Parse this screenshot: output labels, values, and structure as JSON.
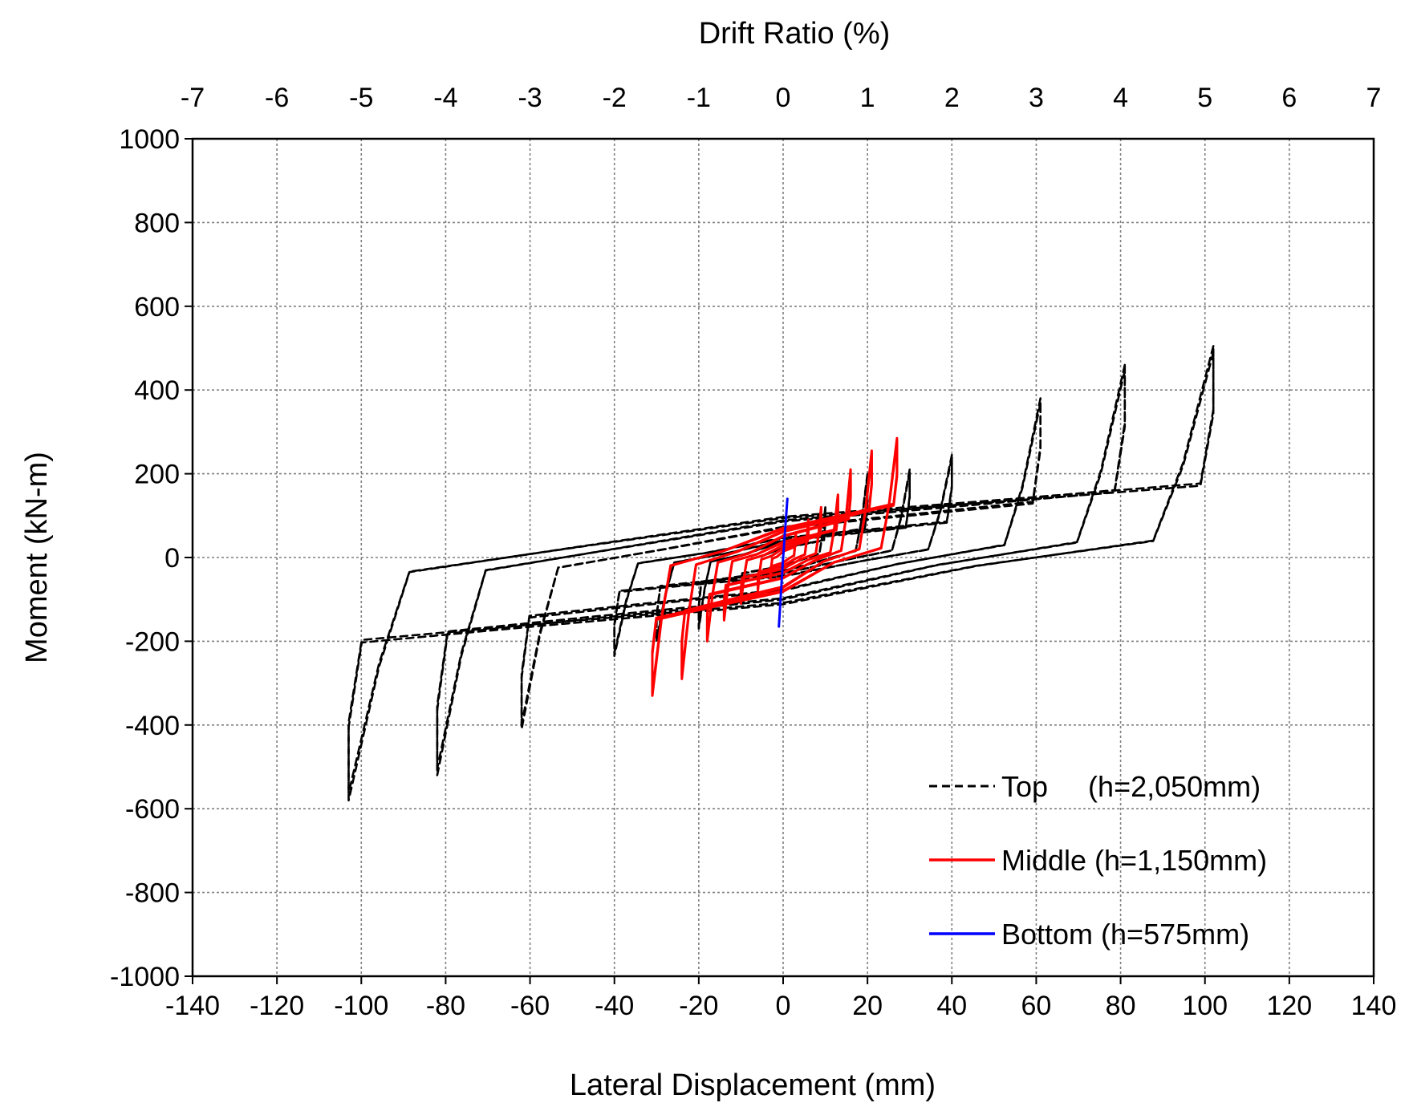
{
  "chart_data": {
    "type": "line",
    "title": "",
    "xlabel": "Lateral Displacement (mm)",
    "ylabel": "Moment (kN-m)",
    "x2label": "Drift Ratio (%)",
    "xlim": [
      -140,
      140
    ],
    "ylim": [
      -1000,
      1000
    ],
    "x2lim": [
      -7,
      7
    ],
    "xticks": [
      -140,
      -120,
      -100,
      -80,
      -60,
      -40,
      -20,
      0,
      20,
      40,
      60,
      80,
      100,
      120,
      140
    ],
    "yticks": [
      -1000,
      -800,
      -600,
      -400,
      -200,
      0,
      200,
      400,
      600,
      800,
      1000
    ],
    "x2ticks": [
      -7,
      -6,
      -5,
      -4,
      -3,
      -2,
      -1,
      0,
      1,
      2,
      3,
      4,
      5,
      6,
      7
    ],
    "grid": true,
    "legend_position": "bottom-right",
    "series": [
      {
        "name": "Top",
        "legend_label": "Top     (h=2,050mm)",
        "color": "#000000",
        "style": "dashed",
        "loops": [
          {
            "amp_pos": 10,
            "m_pos": 120,
            "amp_neg": -10,
            "m_neg": -110
          },
          {
            "amp_pos": 20,
            "m_pos": 200,
            "amp_neg": -20,
            "m_neg": -170
          },
          {
            "amp_pos": 30,
            "m_pos": 210,
            "amp_neg": -30,
            "m_neg": -200
          },
          {
            "amp_pos": 40,
            "m_pos": 245,
            "amp_neg": -40,
            "m_neg": -235
          },
          {
            "amp_pos": 61,
            "m_pos": 380,
            "amp_neg": -62,
            "m_neg": -410
          },
          {
            "amp_pos": 81,
            "m_pos": 460,
            "amp_neg": -82,
            "m_neg": -520
          },
          {
            "amp_pos": 102,
            "m_pos": 505,
            "amp_neg": -103,
            "m_neg": -580
          }
        ]
      },
      {
        "name": "Middle",
        "legend_label": "Middle (h=1,150mm)",
        "color": "#ff0000",
        "style": "solid",
        "loops": [
          {
            "amp_pos": 3,
            "m_pos": 60,
            "amp_neg": -3,
            "m_neg": -50
          },
          {
            "amp_pos": 6,
            "m_pos": 90,
            "amp_neg": -6,
            "m_neg": -80
          },
          {
            "amp_pos": 9,
            "m_pos": 120,
            "amp_neg": -10,
            "m_neg": -110
          },
          {
            "amp_pos": 13,
            "m_pos": 150,
            "amp_neg": -14,
            "m_neg": -150
          },
          {
            "amp_pos": 16,
            "m_pos": 210,
            "amp_neg": -18,
            "m_neg": -200
          },
          {
            "amp_pos": 21,
            "m_pos": 255,
            "amp_neg": -24,
            "m_neg": -290
          },
          {
            "amp_pos": 27,
            "m_pos": 285,
            "amp_neg": -31,
            "m_neg": -330
          }
        ]
      },
      {
        "name": "Bottom",
        "legend_label": "Bottom (h=575mm)",
        "color": "#0000ff",
        "style": "solid",
        "x": [
          -1,
          0,
          1
        ],
        "y": [
          -165,
          0,
          140
        ]
      }
    ]
  }
}
